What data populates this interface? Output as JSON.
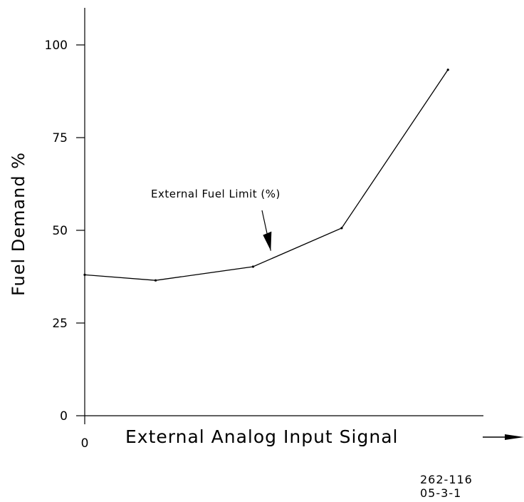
{
  "chart_data": {
    "type": "line",
    "ylabel": "Fuel Demand %",
    "xlabel": "External Analog Input Signal",
    "x_tick_labels": [
      "0"
    ],
    "y_ticks": [
      0,
      25,
      50,
      75,
      100
    ],
    "y_tick_labels": [
      "0",
      "25",
      "50",
      "75",
      "100"
    ],
    "ylim": [
      0,
      110
    ],
    "xlim": [
      0,
      4.5
    ],
    "grid": false,
    "series": [
      {
        "x": [
          0,
          0.8,
          1.9,
          2.9,
          4.1
        ],
        "y": [
          38,
          36.5,
          40.2,
          50.6,
          93.3
        ]
      }
    ],
    "annotation": {
      "text": "External Fuel Limit (%)",
      "points_to_x": 2.1,
      "points_to_y": 44.5
    }
  },
  "drawing_number": {
    "line1": "262-116",
    "line2": "05-3-1"
  },
  "colors": {
    "line": "#000000",
    "background": "#ffffff"
  }
}
